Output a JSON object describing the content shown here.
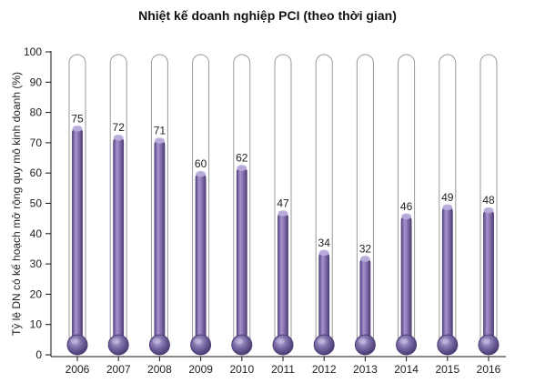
{
  "chart_data": {
    "type": "bar",
    "title": "Nhiệt kế doanh nghiệp PCI (theo thời gian)",
    "xlabel": "",
    "ylabel": "Tỷ lệ DN có kế hoạch mở rộng quy mô kinh doanh (%)",
    "categories": [
      "2006",
      "2007",
      "2008",
      "2009",
      "2010",
      "2011",
      "2012",
      "2013",
      "2014",
      "2015",
      "2016"
    ],
    "values": [
      75,
      72,
      71,
      60,
      62,
      47,
      34,
      32,
      46,
      49,
      48
    ],
    "ylim": [
      0,
      100
    ],
    "yticks": [
      0,
      10,
      20,
      30,
      40,
      50,
      60,
      70,
      80,
      90,
      100
    ],
    "grid": false,
    "legend": "none",
    "style": "thermometer",
    "colors": {
      "fill": "#7e6aa7",
      "fill_dark": "#4f3f77",
      "fill_light": "#b7a9d7",
      "tube_stroke": "#999999",
      "bulb": "#6f5b9a"
    }
  }
}
